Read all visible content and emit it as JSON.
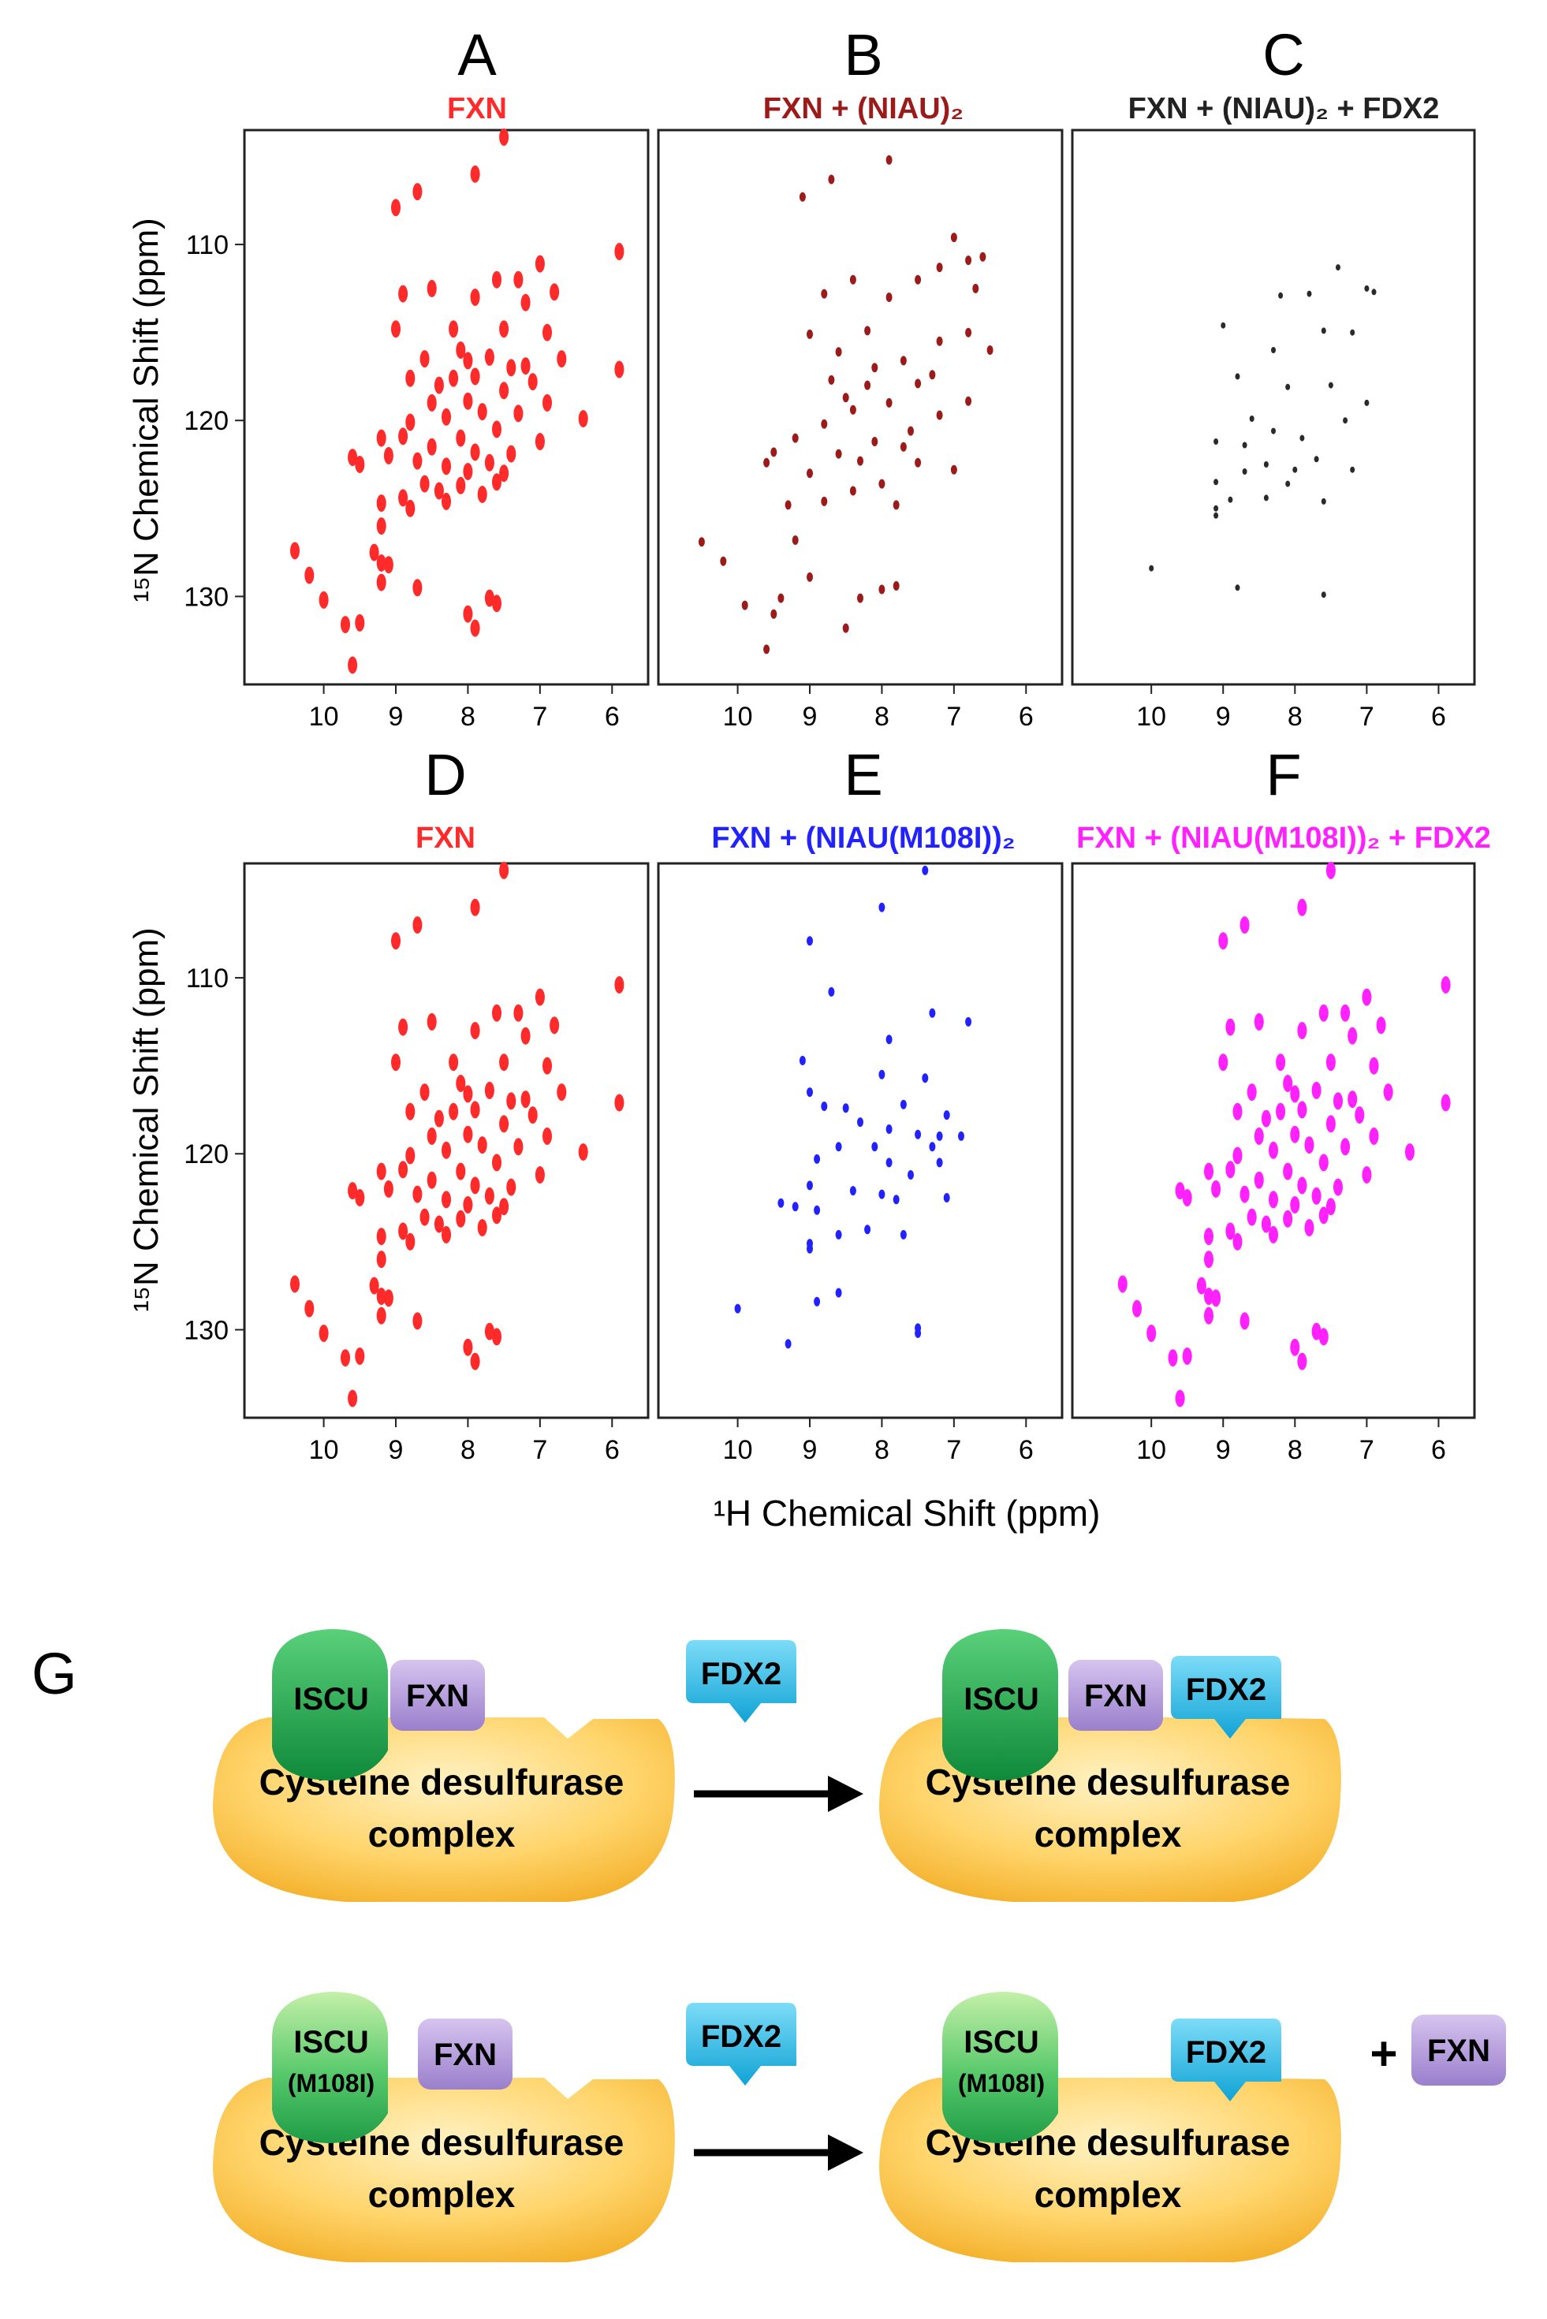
{
  "figure": {
    "shared_xlabel": "¹H Chemical Shift (ppm)",
    "shared_ylabel": "¹⁵N Chemical Shift (ppm)",
    "x_ticks": [
      10,
      9,
      8,
      7,
      6
    ],
    "y_ticks": [
      110,
      120,
      130
    ]
  },
  "chart_data": [
    {
      "type": "scatter",
      "letter": "A",
      "title": "FXN",
      "color": "#ff2a2a",
      "size": "large",
      "xlabel": "¹H Chemical Shift (ppm)",
      "ylabel": "¹⁵N Chemical Shift (ppm)",
      "xlim": [
        11.1,
        5.5
      ],
      "ylim": [
        135,
        103.5
      ],
      "ref": "full"
    },
    {
      "type": "scatter",
      "letter": "B",
      "title": "FXN + (NIAU)₂",
      "color": "#9b1b1b",
      "size": "small",
      "xlabel": "¹H Chemical Shift (ppm)",
      "ylabel": "",
      "xlim": [
        11.1,
        5.5
      ],
      "ylim": [
        135,
        103.5
      ],
      "ref": "b"
    },
    {
      "type": "scatter",
      "letter": "C",
      "title": "FXN + (NIAU)₂ + FDX2",
      "color": "#2a2a2a",
      "size": "tiny",
      "xlabel": "¹H Chemical Shift (ppm)",
      "ylabel": "",
      "xlim": [
        11.1,
        5.5
      ],
      "ylim": [
        135,
        103.5
      ],
      "ref": "c"
    },
    {
      "type": "scatter",
      "letter": "D",
      "title": "FXN",
      "color": "#ff2a2a",
      "size": "large",
      "xlabel": "¹H Chemical Shift (ppm)",
      "ylabel": "¹⁵N Chemical Shift (ppm)",
      "xlim": [
        11.1,
        5.5
      ],
      "ylim": [
        135,
        103.5
      ],
      "ref": "full"
    },
    {
      "type": "scatter",
      "letter": "E",
      "title": "FXN + (NIAU(M108I))₂",
      "color": "#2222ff",
      "size": "small",
      "xlabel": "¹H Chemical Shift (ppm)",
      "ylabel": "",
      "xlim": [
        11.1,
        5.5
      ],
      "ylim": [
        135,
        103.5
      ],
      "ref": "e"
    },
    {
      "type": "scatter",
      "letter": "F",
      "title": "FXN + (NIAU(M108I))₂ + FDX2",
      "color": "#ff22ff",
      "size": "large",
      "xlabel": "¹H Chemical Shift (ppm)",
      "ylabel": "",
      "xlim": [
        11.1,
        5.5
      ],
      "ylim": [
        135,
        103.5
      ],
      "ref": "full"
    }
  ],
  "peaks": {
    "full": [
      [
        7.5,
        103.9
      ],
      [
        8.7,
        107.0
      ],
      [
        9.0,
        107.9
      ],
      [
        7.9,
        106.0
      ],
      [
        5.9,
        110.4
      ],
      [
        7.0,
        111.1
      ],
      [
        7.3,
        112.0
      ],
      [
        6.8,
        112.7
      ],
      [
        7.2,
        113.3
      ],
      [
        7.6,
        112.0
      ],
      [
        7.9,
        113.0
      ],
      [
        8.5,
        112.5
      ],
      [
        8.9,
        112.8
      ],
      [
        8.2,
        114.8
      ],
      [
        9.0,
        114.8
      ],
      [
        7.5,
        114.8
      ],
      [
        6.9,
        115.0
      ],
      [
        8.1,
        116.0
      ],
      [
        7.7,
        116.4
      ],
      [
        8.6,
        116.5
      ],
      [
        7.4,
        117.0
      ],
      [
        5.9,
        117.1
      ],
      [
        6.7,
        116.5
      ],
      [
        8.8,
        117.6
      ],
      [
        8.2,
        117.6
      ],
      [
        7.9,
        117.5
      ],
      [
        7.1,
        117.8
      ],
      [
        7.5,
        118.3
      ],
      [
        8.0,
        118.9
      ],
      [
        8.5,
        119.0
      ],
      [
        7.8,
        119.5
      ],
      [
        6.9,
        119.0
      ],
      [
        8.3,
        119.8
      ],
      [
        7.3,
        119.6
      ],
      [
        6.4,
        119.9
      ],
      [
        8.8,
        120.1
      ],
      [
        7.6,
        120.5
      ],
      [
        8.1,
        121.0
      ],
      [
        7.0,
        121.2
      ],
      [
        9.2,
        121.0
      ],
      [
        9.6,
        122.1
      ],
      [
        8.5,
        121.5
      ],
      [
        7.9,
        121.8
      ],
      [
        9.5,
        122.5
      ],
      [
        9.1,
        122.0
      ],
      [
        8.7,
        122.3
      ],
      [
        8.3,
        122.6
      ],
      [
        8.0,
        122.9
      ],
      [
        7.5,
        123.0
      ],
      [
        8.6,
        123.6
      ],
      [
        8.1,
        123.7
      ],
      [
        8.4,
        124.0
      ],
      [
        7.8,
        124.2
      ],
      [
        9.2,
        124.7
      ],
      [
        8.9,
        124.4
      ],
      [
        8.3,
        124.6
      ],
      [
        7.6,
        123.5
      ],
      [
        9.2,
        126.0
      ],
      [
        8.8,
        125.0
      ],
      [
        10.4,
        127.4
      ],
      [
        9.3,
        127.5
      ],
      [
        9.2,
        128.1
      ],
      [
        9.1,
        128.2
      ],
      [
        10.2,
        128.8
      ],
      [
        8.7,
        129.5
      ],
      [
        10.0,
        130.2
      ],
      [
        7.7,
        130.1
      ],
      [
        7.6,
        130.4
      ],
      [
        8.0,
        131.0
      ],
      [
        7.9,
        131.8
      ],
      [
        9.5,
        131.5
      ],
      [
        9.6,
        133.9
      ],
      [
        9.7,
        131.6
      ],
      [
        9.2,
        129.2
      ],
      [
        7.2,
        116.9
      ],
      [
        8.4,
        118.0
      ],
      [
        7.4,
        121.9
      ],
      [
        8.9,
        120.9
      ],
      [
        7.7,
        122.4
      ],
      [
        8.0,
        116.6
      ]
    ],
    "b": [
      [
        7.9,
        105.2
      ],
      [
        8.7,
        106.3
      ],
      [
        9.1,
        107.3
      ],
      [
        7.0,
        109.6
      ],
      [
        6.6,
        110.7
      ],
      [
        6.8,
        110.9
      ],
      [
        7.2,
        111.3
      ],
      [
        7.5,
        112.0
      ],
      [
        6.7,
        112.5
      ],
      [
        8.4,
        112.0
      ],
      [
        8.8,
        112.8
      ],
      [
        7.9,
        113.0
      ],
      [
        8.2,
        114.9
      ],
      [
        9.0,
        115.1
      ],
      [
        7.2,
        115.5
      ],
      [
        6.8,
        115.0
      ],
      [
        8.6,
        116.1
      ],
      [
        7.7,
        116.6
      ],
      [
        6.5,
        116.0
      ],
      [
        8.1,
        117.0
      ],
      [
        8.7,
        117.7
      ],
      [
        7.5,
        117.9
      ],
      [
        8.2,
        118.0
      ],
      [
        6.8,
        118.9
      ],
      [
        7.9,
        119.0
      ],
      [
        8.4,
        119.4
      ],
      [
        7.2,
        119.7
      ],
      [
        8.8,
        120.2
      ],
      [
        7.6,
        120.6
      ],
      [
        9.2,
        121.0
      ],
      [
        9.5,
        121.8
      ],
      [
        8.1,
        121.2
      ],
      [
        8.6,
        121.9
      ],
      [
        9.6,
        122.4
      ],
      [
        8.3,
        122.3
      ],
      [
        7.5,
        122.4
      ],
      [
        9.0,
        123.0
      ],
      [
        8.0,
        123.6
      ],
      [
        7.0,
        122.8
      ],
      [
        8.4,
        124.0
      ],
      [
        9.3,
        124.8
      ],
      [
        8.8,
        124.6
      ],
      [
        7.8,
        124.8
      ],
      [
        10.5,
        126.9
      ],
      [
        9.2,
        126.8
      ],
      [
        10.2,
        128.0
      ],
      [
        9.0,
        128.9
      ],
      [
        8.0,
        129.6
      ],
      [
        7.8,
        129.4
      ],
      [
        9.4,
        130.1
      ],
      [
        9.9,
        130.5
      ],
      [
        8.3,
        130.1
      ],
      [
        9.5,
        131.0
      ],
      [
        8.5,
        131.8
      ],
      [
        9.6,
        133.0
      ],
      [
        7.3,
        117.4
      ],
      [
        7.7,
        121.5
      ],
      [
        8.5,
        118.7
      ]
    ],
    "c": [
      [
        7.4,
        111.3
      ],
      [
        8.2,
        112.9
      ],
      [
        6.9,
        112.7
      ],
      [
        7.8,
        112.8
      ],
      [
        7.0,
        112.5
      ],
      [
        9.0,
        114.6
      ],
      [
        7.6,
        114.9
      ],
      [
        8.3,
        116.0
      ],
      [
        7.2,
        115.0
      ],
      [
        8.8,
        117.5
      ],
      [
        8.1,
        118.1
      ],
      [
        7.5,
        118.0
      ],
      [
        7.0,
        119.0
      ],
      [
        8.6,
        119.9
      ],
      [
        7.3,
        120.0
      ],
      [
        8.3,
        120.6
      ],
      [
        7.9,
        121.0
      ],
      [
        9.1,
        121.2
      ],
      [
        8.7,
        121.4
      ],
      [
        7.7,
        122.2
      ],
      [
        8.4,
        122.5
      ],
      [
        8.7,
        122.9
      ],
      [
        7.2,
        122.8
      ],
      [
        9.1,
        123.5
      ],
      [
        8.0,
        122.8
      ],
      [
        8.1,
        123.6
      ],
      [
        8.4,
        124.4
      ],
      [
        7.6,
        124.6
      ],
      [
        9.1,
        125.0
      ],
      [
        9.1,
        125.4
      ],
      [
        8.9,
        124.5
      ],
      [
        10.0,
        128.4
      ],
      [
        8.8,
        129.5
      ],
      [
        7.6,
        129.9
      ]
    ],
    "e": [
      [
        7.4,
        103.9
      ],
      [
        8.0,
        106.0
      ],
      [
        9.0,
        107.9
      ],
      [
        8.7,
        110.8
      ],
      [
        7.3,
        112.0
      ],
      [
        6.8,
        112.5
      ],
      [
        7.9,
        113.5
      ],
      [
        9.1,
        114.7
      ],
      [
        8.0,
        115.5
      ],
      [
        7.4,
        115.7
      ],
      [
        9.0,
        116.5
      ],
      [
        8.8,
        117.3
      ],
      [
        8.5,
        117.4
      ],
      [
        7.7,
        117.2
      ],
      [
        7.1,
        117.8
      ],
      [
        8.3,
        118.2
      ],
      [
        7.9,
        118.6
      ],
      [
        7.5,
        118.9
      ],
      [
        6.9,
        119.0
      ],
      [
        8.6,
        119.6
      ],
      [
        8.1,
        119.6
      ],
      [
        7.3,
        119.6
      ],
      [
        8.9,
        120.3
      ],
      [
        7.9,
        120.5
      ],
      [
        7.2,
        120.5
      ],
      [
        7.6,
        121.2
      ],
      [
        9.0,
        121.8
      ],
      [
        8.4,
        122.1
      ],
      [
        8.0,
        122.3
      ],
      [
        7.8,
        122.6
      ],
      [
        9.4,
        122.8
      ],
      [
        7.1,
        122.5
      ],
      [
        9.2,
        123.0
      ],
      [
        8.9,
        123.2
      ],
      [
        8.2,
        124.3
      ],
      [
        8.6,
        124.6
      ],
      [
        7.7,
        124.6
      ],
      [
        9.0,
        125.1
      ],
      [
        9.0,
        125.4
      ],
      [
        8.6,
        127.9
      ],
      [
        10.0,
        128.8
      ],
      [
        8.9,
        128.4
      ],
      [
        7.5,
        129.9
      ],
      [
        7.5,
        130.2
      ],
      [
        9.3,
        130.8
      ],
      [
        7.2,
        119.0
      ]
    ]
  },
  "panel_g": {
    "letter": "G",
    "iscu_label": "ISCU",
    "iscu_mutant_label": "ISCU",
    "mutation_label": "(M108I)",
    "fxn_label": "FXN",
    "fdx2_label": "FDX2",
    "complex_line1": "Cysteine desulfurase",
    "complex_line2": "complex",
    "plus_sign": "+",
    "colors": {
      "iscu": "#1aa54a",
      "iscu_mutant": "#47c65c",
      "fxn": "#b39ad9",
      "fdx2": "#19b3e0",
      "complex": "#ffc84a",
      "arrow": "#000000"
    }
  }
}
